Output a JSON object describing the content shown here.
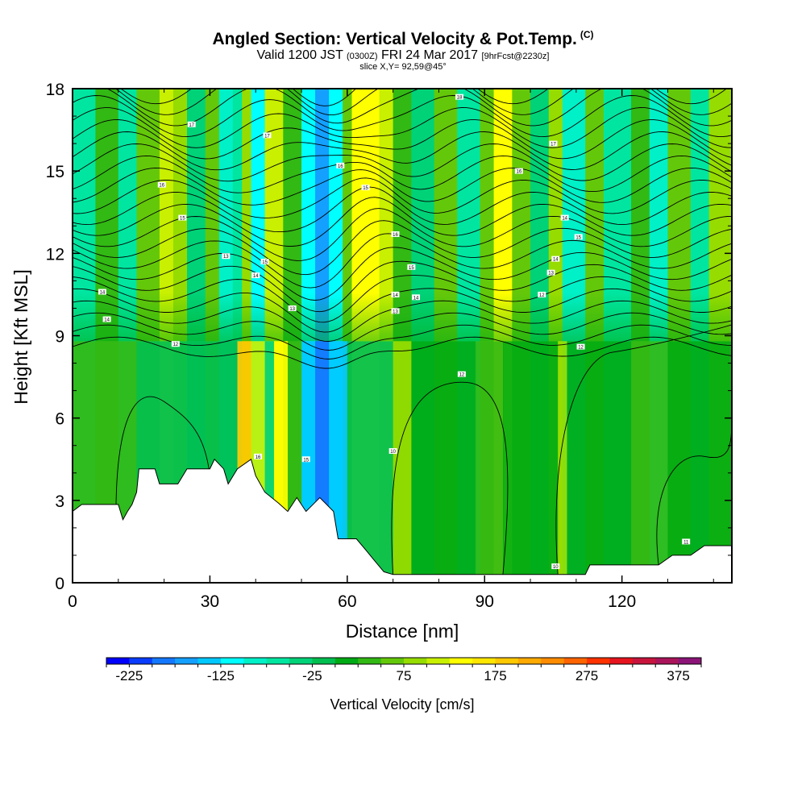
{
  "header": {
    "title": "Angled Section: Vertical Velocity & Pot.Temp.",
    "title_unit": "(C)",
    "valid_prefix": "Valid 1200 JST",
    "valid_zulu": "(0300Z)",
    "valid_date": "FRI 24 Mar 2017",
    "forecast_tag": "[9hrFcst@2230z]",
    "slice": "slice X,Y= 92,59@45°"
  },
  "chart_data": {
    "type": "heatmap",
    "xlabel": "Distance [nm]",
    "ylabel": "Height [Kft MSL]",
    "xlim": [
      0,
      144
    ],
    "ylim": [
      0,
      18
    ],
    "x_ticks": [
      0,
      30,
      60,
      90,
      120
    ],
    "y_ticks": [
      0,
      3,
      6,
      9,
      12,
      15,
      18
    ],
    "colorbar": {
      "label": "Vertical Velocity [cm/s]",
      "tick_labels": [
        -225,
        -125,
        -25,
        75,
        175,
        275,
        375
      ],
      "levels": [
        -250,
        -225,
        -200,
        -175,
        -150,
        -125,
        -100,
        -75,
        -50,
        -25,
        0,
        25,
        50,
        75,
        100,
        125,
        150,
        175,
        200,
        225,
        250,
        275,
        300,
        325,
        350,
        375,
        400
      ],
      "colors": [
        "#0000ff",
        "#0a3cff",
        "#1478ff",
        "#14a0ff",
        "#00c8ff",
        "#00ffff",
        "#00f0c8",
        "#00e6a0",
        "#00d278",
        "#00be50",
        "#00aa14",
        "#32b914",
        "#64c80a",
        "#96dc00",
        "#c8f000",
        "#ffff00",
        "#ffe600",
        "#ffc800",
        "#ffaa00",
        "#ff8c00",
        "#ff6400",
        "#ff3200",
        "#e6141e",
        "#c8143c",
        "#aa145a",
        "#8c1478"
      ]
    },
    "velocity_bands": [
      {
        "x": 0,
        "w": 5,
        "color": "#00e6a0"
      },
      {
        "x": 5,
        "w": 5,
        "color": "#32b914"
      },
      {
        "x": 10,
        "w": 4,
        "color": "#00e6a0"
      },
      {
        "x": 14,
        "w": 5,
        "color": "#64c80a"
      },
      {
        "x": 19,
        "w": 3,
        "color": "#c8f000"
      },
      {
        "x": 22,
        "w": 3,
        "color": "#96dc00"
      },
      {
        "x": 25,
        "w": 4,
        "color": "#00d278"
      },
      {
        "x": 29,
        "w": 3,
        "color": "#64c80a"
      },
      {
        "x": 32,
        "w": 3,
        "color": "#00f0c8"
      },
      {
        "x": 35,
        "w": 2,
        "color": "#00e6a0"
      },
      {
        "x": 37,
        "w": 2,
        "color": "#96dc00"
      },
      {
        "x": 39,
        "w": 3,
        "color": "#00ffff"
      },
      {
        "x": 42,
        "w": 4,
        "color": "#c8f000"
      },
      {
        "x": 46,
        "w": 4,
        "color": "#32b914"
      },
      {
        "x": 50,
        "w": 3,
        "color": "#00ffff"
      },
      {
        "x": 53,
        "w": 3,
        "color": "#14a0ff"
      },
      {
        "x": 56,
        "w": 3,
        "color": "#00ffff"
      },
      {
        "x": 59,
        "w": 2,
        "color": "#64c80a"
      },
      {
        "x": 61,
        "w": 6,
        "color": "#ffff00"
      },
      {
        "x": 67,
        "w": 3,
        "color": "#c8f000"
      },
      {
        "x": 70,
        "w": 4,
        "color": "#32b914"
      },
      {
        "x": 74,
        "w": 5,
        "color": "#00d278"
      },
      {
        "x": 79,
        "w": 5,
        "color": "#64c80a"
      },
      {
        "x": 84,
        "w": 5,
        "color": "#00e6a0"
      },
      {
        "x": 89,
        "w": 3,
        "color": "#64c80a"
      },
      {
        "x": 92,
        "w": 4,
        "color": "#ffff00"
      },
      {
        "x": 96,
        "w": 4,
        "color": "#64c80a"
      },
      {
        "x": 100,
        "w": 4,
        "color": "#00d278"
      },
      {
        "x": 104,
        "w": 3,
        "color": "#96dc00"
      },
      {
        "x": 107,
        "w": 5,
        "color": "#00f0c8"
      },
      {
        "x": 112,
        "w": 4,
        "color": "#64c80a"
      },
      {
        "x": 116,
        "w": 6,
        "color": "#00e6a0"
      },
      {
        "x": 122,
        "w": 4,
        "color": "#32b914"
      },
      {
        "x": 126,
        "w": 4,
        "color": "#00f0c8"
      },
      {
        "x": 130,
        "w": 5,
        "color": "#64c80a"
      },
      {
        "x": 135,
        "w": 4,
        "color": "#00e6a0"
      },
      {
        "x": 139,
        "w": 5,
        "color": "#96dc00"
      }
    ],
    "low_level_bands": [
      {
        "x": 0,
        "w": 14,
        "color": "#32b914"
      },
      {
        "x": 14,
        "w": 22,
        "color": "#00be50"
      },
      {
        "x": 36,
        "w": 3,
        "color": "#ffc800"
      },
      {
        "x": 39,
        "w": 3,
        "color": "#c8f000"
      },
      {
        "x": 42,
        "w": 2,
        "color": "#00d278"
      },
      {
        "x": 44,
        "w": 3,
        "color": "#ffff00"
      },
      {
        "x": 47,
        "w": 3,
        "color": "#32b914"
      },
      {
        "x": 50,
        "w": 3,
        "color": "#00c8ff"
      },
      {
        "x": 53,
        "w": 3,
        "color": "#1478ff"
      },
      {
        "x": 56,
        "w": 4,
        "color": "#00c8ff"
      },
      {
        "x": 60,
        "w": 10,
        "color": "#00be50"
      },
      {
        "x": 70,
        "w": 4,
        "color": "#96dc00"
      },
      {
        "x": 74,
        "w": 14,
        "color": "#00aa14"
      },
      {
        "x": 88,
        "w": 6,
        "color": "#32b914"
      },
      {
        "x": 94,
        "w": 12,
        "color": "#00aa14"
      },
      {
        "x": 106,
        "w": 2,
        "color": "#96dc00"
      },
      {
        "x": 108,
        "w": 14,
        "color": "#00aa14"
      },
      {
        "x": 122,
        "w": 8,
        "color": "#32b914"
      },
      {
        "x": 130,
        "w": 14,
        "color": "#00aa14"
      }
    ],
    "terrain": [
      [
        0,
        2.6
      ],
      [
        2,
        2.85
      ],
      [
        10,
        2.85
      ],
      [
        11,
        2.3
      ],
      [
        12,
        2.6
      ],
      [
        13,
        2.85
      ],
      [
        14,
        3.3
      ],
      [
        14.5,
        4.15
      ],
      [
        18,
        4.15
      ],
      [
        19,
        3.6
      ],
      [
        23,
        3.6
      ],
      [
        25,
        4.15
      ],
      [
        30,
        4.15
      ],
      [
        31,
        4.5
      ],
      [
        33,
        4.15
      ],
      [
        34,
        3.6
      ],
      [
        36,
        4.15
      ],
      [
        39,
        4.5
      ],
      [
        40,
        3.9
      ],
      [
        42,
        3.3
      ],
      [
        45,
        2.9
      ],
      [
        47,
        2.6
      ],
      [
        49,
        3.1
      ],
      [
        51,
        2.6
      ],
      [
        54,
        3.1
      ],
      [
        57,
        2.6
      ],
      [
        58,
        1.6
      ],
      [
        62,
        1.6
      ],
      [
        64,
        1.2
      ],
      [
        66,
        0.8
      ],
      [
        68,
        0.4
      ],
      [
        70,
        0.3
      ],
      [
        112,
        0.3
      ],
      [
        113,
        0.65
      ],
      [
        128,
        0.65
      ],
      [
        131,
        1.0
      ],
      [
        135,
        1.0
      ],
      [
        138,
        1.35
      ],
      [
        144,
        1.35
      ]
    ],
    "theta_contour_labels": [
      {
        "x": 6.5,
        "y": 10.6,
        "text": "14"
      },
      {
        "x": 7.5,
        "y": 9.6,
        "text": "14"
      },
      {
        "x": 19.5,
        "y": 14.5,
        "text": "16"
      },
      {
        "x": 22.5,
        "y": 8.7,
        "text": "12"
      },
      {
        "x": 24,
        "y": 13.3,
        "text": "15"
      },
      {
        "x": 26,
        "y": 16.7,
        "text": "17"
      },
      {
        "x": 33.5,
        "y": 11.9,
        "text": "13"
      },
      {
        "x": 40,
        "y": 11.2,
        "text": "14"
      },
      {
        "x": 42,
        "y": 11.7,
        "text": "15"
      },
      {
        "x": 42.5,
        "y": 16.3,
        "text": "17"
      },
      {
        "x": 40.5,
        "y": 4.6,
        "text": "16"
      },
      {
        "x": 48,
        "y": 10.0,
        "text": "13"
      },
      {
        "x": 51,
        "y": 4.5,
        "text": "15"
      },
      {
        "x": 58.5,
        "y": 15.2,
        "text": "16"
      },
      {
        "x": 64,
        "y": 14.4,
        "text": "15"
      },
      {
        "x": 70.5,
        "y": 12.7,
        "text": "16"
      },
      {
        "x": 70.5,
        "y": 10.5,
        "text": "14"
      },
      {
        "x": 70.5,
        "y": 9.9,
        "text": "13"
      },
      {
        "x": 74,
        "y": 11.5,
        "text": "15"
      },
      {
        "x": 75,
        "y": 10.4,
        "text": "14"
      },
      {
        "x": 85,
        "y": 7.6,
        "text": "12"
      },
      {
        "x": 70,
        "y": 4.8,
        "text": "10"
      },
      {
        "x": 84.5,
        "y": 17.7,
        "text": "18"
      },
      {
        "x": 97.5,
        "y": 15.0,
        "text": "16"
      },
      {
        "x": 105,
        "y": 16.0,
        "text": "17"
      },
      {
        "x": 107.5,
        "y": 13.3,
        "text": "14"
      },
      {
        "x": 110.5,
        "y": 12.6,
        "text": "15"
      },
      {
        "x": 105.5,
        "y": 11.8,
        "text": "14"
      },
      {
        "x": 104.5,
        "y": 11.3,
        "text": "13"
      },
      {
        "x": 102.5,
        "y": 10.5,
        "text": "12"
      },
      {
        "x": 111,
        "y": 8.6,
        "text": "12"
      },
      {
        "x": 105.5,
        "y": 0.6,
        "text": "10"
      },
      {
        "x": 134,
        "y": 1.5,
        "text": "11"
      }
    ]
  }
}
